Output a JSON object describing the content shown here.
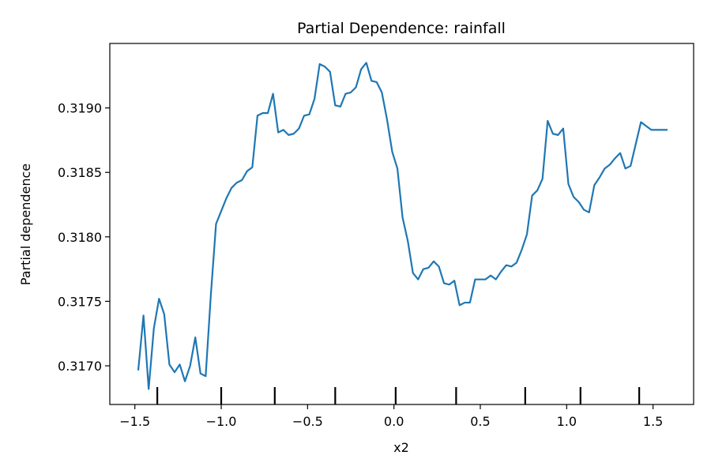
{
  "chart_data": {
    "type": "line",
    "title": "Partial Dependence: rainfall",
    "xlabel": "x2",
    "ylabel": "Partial dependence",
    "xlim": [
      -1.645,
      1.735
    ],
    "ylim": [
      0.3167,
      0.3195
    ],
    "x_ticks": [
      -1.5,
      -1.0,
      -0.5,
      0.0,
      0.5,
      1.0,
      1.5
    ],
    "x_tick_labels": [
      "−1.5",
      "−1.0",
      "−0.5",
      "0.0",
      "0.5",
      "1.0",
      "1.5"
    ],
    "y_ticks": [
      0.317,
      0.3175,
      0.318,
      0.3185,
      0.319
    ],
    "y_tick_labels": [
      "0.3170",
      "0.3175",
      "0.3180",
      "0.3185",
      "0.3190"
    ],
    "deciles": [
      -1.37,
      -1.0,
      -0.69,
      -0.34,
      0.01,
      0.36,
      0.76,
      1.08,
      1.42
    ],
    "grid": false,
    "legend": "none",
    "series": [
      {
        "color": "#1f77b4",
        "x": [
          -1.48,
          -1.45,
          -1.42,
          -1.39,
          -1.36,
          -1.33,
          -1.3,
          -1.27,
          -1.24,
          -1.21,
          -1.18,
          -1.15,
          -1.12,
          -1.09,
          -1.06,
          -1.03,
          -1.0,
          -0.97,
          -0.94,
          -0.91,
          -0.88,
          -0.85,
          -0.82,
          -0.79,
          -0.76,
          -0.73,
          -0.7,
          -0.67,
          -0.64,
          -0.61,
          -0.58,
          -0.55,
          -0.52,
          -0.49,
          -0.46,
          -0.43,
          -0.4,
          -0.37,
          -0.34,
          -0.31,
          -0.28,
          -0.25,
          -0.22,
          -0.19,
          -0.16,
          -0.13,
          -0.1,
          -0.07,
          -0.04,
          -0.01,
          0.02,
          0.05,
          0.08,
          0.11,
          0.14,
          0.17,
          0.2,
          0.23,
          0.26,
          0.29,
          0.32,
          0.35,
          0.38,
          0.41,
          0.44,
          0.47,
          0.5,
          0.53,
          0.56,
          0.59,
          0.62,
          0.65,
          0.68,
          0.71,
          0.74,
          0.77,
          0.8,
          0.83,
          0.86,
          0.89,
          0.92,
          0.95,
          0.98,
          1.01,
          1.04,
          1.07,
          1.1,
          1.13,
          1.16,
          1.19,
          1.22,
          1.25,
          1.28,
          1.31,
          1.34,
          1.37,
          1.4,
          1.43,
          1.46,
          1.49,
          1.52,
          1.55,
          1.58
        ],
        "y": [
          0.31697,
          0.31739,
          0.31682,
          0.31729,
          0.31752,
          0.3174,
          0.31701,
          0.31695,
          0.31701,
          0.31688,
          0.317,
          0.31722,
          0.31694,
          0.31692,
          0.31755,
          0.3181,
          0.3182,
          0.3183,
          0.31838,
          0.31842,
          0.31844,
          0.31851,
          0.31854,
          0.31894,
          0.31896,
          0.31896,
          0.31911,
          0.31881,
          0.31883,
          0.31879,
          0.3188,
          0.31884,
          0.31894,
          0.31895,
          0.31907,
          0.31934,
          0.31932,
          0.31928,
          0.31902,
          0.31901,
          0.31911,
          0.31912,
          0.31916,
          0.3193,
          0.31935,
          0.31921,
          0.3192,
          0.31912,
          0.31891,
          0.31866,
          0.31853,
          0.31815,
          0.31797,
          0.31772,
          0.31767,
          0.31775,
          0.31776,
          0.31781,
          0.31777,
          0.31764,
          0.31763,
          0.31766,
          0.31747,
          0.31749,
          0.31749,
          0.31767,
          0.31767,
          0.31767,
          0.3177,
          0.31767,
          0.31773,
          0.31778,
          0.31777,
          0.3178,
          0.3179,
          0.31802,
          0.31832,
          0.31836,
          0.31845,
          0.3189,
          0.3188,
          0.31879,
          0.31884,
          0.31841,
          0.31831,
          0.31827,
          0.31821,
          0.31819,
          0.3184,
          0.31846,
          0.31853,
          0.31856,
          0.31861,
          0.31865,
          0.31853,
          0.31855,
          0.31872,
          0.31889,
          0.31886,
          0.31883,
          0.31883,
          0.31883,
          0.31883
        ]
      }
    ]
  }
}
